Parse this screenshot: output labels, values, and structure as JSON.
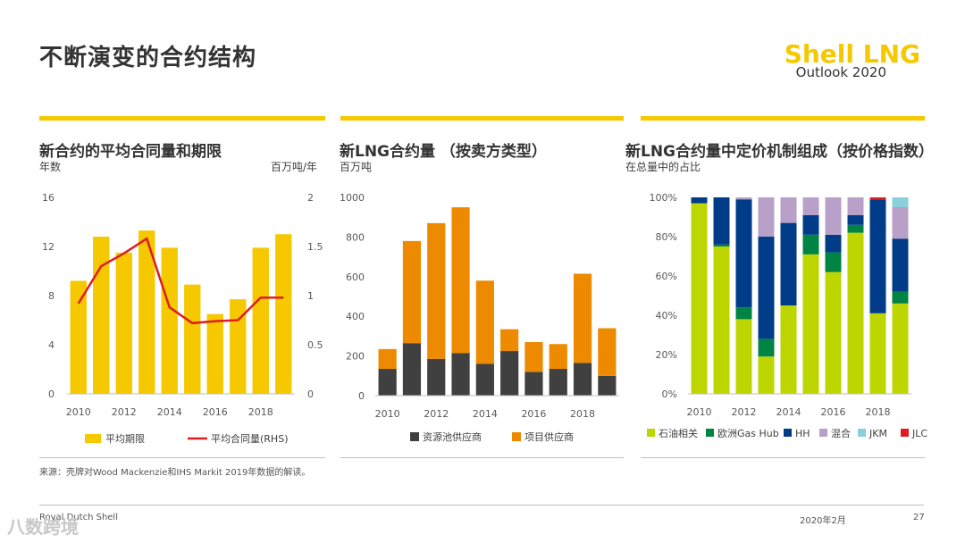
{
  "header": {
    "title": "不断演变的合约结构",
    "brand_name": "Shell LNG",
    "brand_sub": "Outlook 2020"
  },
  "panels": [
    {
      "title": "新合约的平均合同量和期限",
      "sub_left": "年数",
      "sub_right": "百万吨/年"
    },
    {
      "title": "新LNG合约量 （按卖方类型）",
      "sub_left": "百万吨"
    },
    {
      "title": "新LNG合约量中定价机制组成（按价格指数）",
      "sub_left": "在总量中的占比"
    }
  ],
  "footer": {
    "source": "来源：壳牌对Wood Mackenzie和IHS Markit 2019年数据的解读。",
    "company": "Royal Dutch Shell",
    "date": "2020年2月",
    "page": "27",
    "watermark": "八数跨境"
  },
  "colors": {
    "yellow": "#f5c800",
    "red": "#dd1d21",
    "orange": "#ed8a00",
    "dark": "#404040",
    "oil": "#bed600",
    "nbp": "#008443",
    "hh": "#003c88",
    "mixed": "#b9a0c8",
    "jkm": "#89cfdc",
    "jlc": "#dd1d21"
  },
  "chart_data": [
    {
      "type": "bar+line",
      "title": "新合约的平均合同量和期限",
      "categories": [
        "2010",
        "2011",
        "2012",
        "2013",
        "2014",
        "2015",
        "2016",
        "2017",
        "2018",
        "2019"
      ],
      "x_tick_labels": [
        "2010",
        "2012",
        "2014",
        "2016",
        "2018"
      ],
      "series": [
        {
          "name": "平均期限",
          "type": "bar",
          "axis": "left",
          "values": [
            9.2,
            12.8,
            11.5,
            13.3,
            11.9,
            8.9,
            6.5,
            7.7,
            11.9,
            13.0
          ]
        },
        {
          "name": "平均合同量(RHS)",
          "type": "line",
          "axis": "right",
          "values": [
            0.92,
            1.3,
            1.43,
            1.58,
            0.88,
            0.72,
            0.74,
            0.75,
            0.98,
            0.98
          ]
        }
      ],
      "ylim_left": [
        0,
        16
      ],
      "yticks_left": [
        "0",
        "4",
        "8",
        "12",
        "16"
      ],
      "ylim_right": [
        0,
        2
      ],
      "yticks_right": [
        "0",
        "0.5",
        "1",
        "1.5",
        "2"
      ],
      "ylabel_left": "年数",
      "ylabel_right": "百万吨/年"
    },
    {
      "type": "stacked-bar",
      "title": "新LNG合约量 （按卖方类型）",
      "categories": [
        "2010",
        "2011",
        "2012",
        "2013",
        "2014",
        "2015",
        "2016",
        "2017",
        "2018",
        "2019"
      ],
      "x_tick_labels": [
        "2010",
        "2012",
        "2014",
        "2016",
        "2018"
      ],
      "series": [
        {
          "name": "资源池供应商",
          "values": [
            135,
            265,
            185,
            215,
            160,
            225,
            120,
            135,
            165,
            100
          ]
        },
        {
          "name": "项目供应商",
          "values": [
            100,
            515,
            685,
            735,
            420,
            110,
            150,
            125,
            450,
            240
          ]
        }
      ],
      "ylim": [
        0,
        1000
      ],
      "yticks": [
        "0",
        "200",
        "400",
        "600",
        "800",
        "1000"
      ],
      "ylabel": "百万吨"
    },
    {
      "type": "stacked-bar-100",
      "title": "新LNG合约量中定价机制组成（按价格指数）",
      "categories": [
        "2010",
        "2011",
        "2012",
        "2013",
        "2014",
        "2015",
        "2016",
        "2017",
        "2018",
        "2019"
      ],
      "x_tick_labels": [
        "2010",
        "2012",
        "2014",
        "2016",
        "2018"
      ],
      "series": [
        {
          "name": "石油相关",
          "values": [
            97,
            75,
            38,
            19,
            45,
            71,
            62,
            82,
            41,
            46
          ]
        },
        {
          "name": "欧洲Gas Hub",
          "values": [
            0,
            1,
            6,
            9,
            0,
            10,
            10,
            4,
            0,
            6
          ]
        },
        {
          "name": "HH",
          "values": [
            3,
            24,
            55,
            52,
            42,
            10,
            9,
            5,
            58,
            27
          ]
        },
        {
          "name": "混合",
          "values": [
            0,
            0,
            1,
            20,
            13,
            9,
            19,
            9,
            0,
            16
          ]
        },
        {
          "name": "JKM",
          "values": [
            0,
            0,
            0,
            0,
            0,
            0,
            0,
            0,
            0,
            5
          ]
        },
        {
          "name": "JLC",
          "values": [
            0,
            0,
            0,
            0,
            0,
            0,
            0,
            0,
            1,
            0
          ]
        }
      ],
      "ylim": [
        0,
        100
      ],
      "yticks": [
        "0%",
        "20%",
        "40%",
        "60%",
        "80%",
        "100%"
      ],
      "ylabel": "在总量中的占比"
    }
  ]
}
